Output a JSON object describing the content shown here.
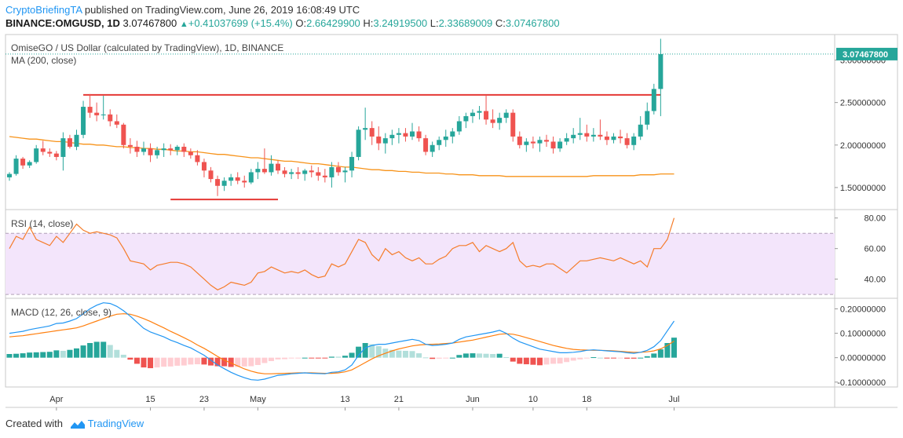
{
  "header": {
    "author": "CryptoBriefingTA",
    "published_text": " published on TradingView.com, June 26, 2019 16:08:49 UTC",
    "symbol": "BINANCE:OMGUSD, 1D",
    "last": "3.07467800",
    "change": "+0.41037699 (+15.4%)",
    "o_label": "O:",
    "o_value": "2.66429900",
    "h_label": "H:",
    "h_value": "3.24919500",
    "l_label": "L:",
    "l_value": "2.33689009",
    "c_label": "C:",
    "c_value": "3.07467800"
  },
  "footer": {
    "prefix": "Created with",
    "brand": "TradingView"
  },
  "colors": {
    "up": "#26a69a",
    "down": "#ef5350",
    "ma": "#f7931a",
    "level": "#e53935",
    "rsi_line": "#f57c2a",
    "rsi_band": "#f3e5fb",
    "macd": "#2196f3",
    "signal": "#ff7f0e",
    "hist_up_strong": "#26a69a",
    "hist_up_weak": "#b2dfdb",
    "hist_down_strong": "#ef5350",
    "hist_down_weak": "#ffcdd2"
  },
  "chart_data": {
    "type": "candlestick",
    "title": "OmiseGO / US Dollar (calculated by TradingView), 1D, BINANCE",
    "ma_label": "MA (200, close)",
    "rsi_label": "RSI (14, close)",
    "macd_label": "MACD (12, 26, close, 9)",
    "last_price_label": "3.07467800",
    "price_axis": {
      "range": [
        1.25,
        3.3
      ],
      "ticks": [
        "1.50000000",
        "2.00000000",
        "2.50000000",
        "3.00000000"
      ],
      "tick_values": [
        1.5,
        2.0,
        2.5,
        3.0
      ]
    },
    "rsi_axis": {
      "range": [
        28,
        85
      ],
      "ticks": [
        "40.00",
        "60.00",
        "80.00"
      ],
      "tick_values": [
        40,
        60,
        80
      ],
      "band": [
        30,
        70
      ]
    },
    "macd_axis": {
      "range": [
        -0.12,
        0.24
      ],
      "ticks": [
        "-0.10000000",
        "0.00000000",
        "0.10000000",
        "0.20000000"
      ],
      "tick_values": [
        -0.1,
        0.0,
        0.1,
        0.2
      ]
    },
    "date_ticks": [
      {
        "label": "Apr",
        "index": 7
      },
      {
        "label": "15",
        "index": 21
      },
      {
        "label": "23",
        "index": 29
      },
      {
        "label": "May",
        "index": 37
      },
      {
        "label": "13",
        "index": 50
      },
      {
        "label": "21",
        "index": 58
      },
      {
        "label": "Jun",
        "index": 69
      },
      {
        "label": "10",
        "index": 78
      },
      {
        "label": "18",
        "index": 86
      },
      {
        "label": "Jul",
        "index": 99
      }
    ],
    "levels": [
      {
        "name": "resistance",
        "value": 2.59,
        "from": 11,
        "to": 97
      },
      {
        "name": "support",
        "value": 1.36,
        "from": 24,
        "to": 40
      }
    ],
    "candles": [
      [
        1.62,
        1.68,
        1.58,
        1.66
      ],
      [
        1.66,
        1.88,
        1.64,
        1.84
      ],
      [
        1.84,
        1.86,
        1.72,
        1.76
      ],
      [
        1.76,
        1.82,
        1.73,
        1.8
      ],
      [
        1.8,
        2.0,
        1.78,
        1.96
      ],
      [
        1.96,
        2.05,
        1.88,
        1.92
      ],
      [
        1.92,
        1.96,
        1.86,
        1.9
      ],
      [
        1.9,
        1.93,
        1.82,
        1.86
      ],
      [
        1.86,
        2.15,
        1.7,
        2.08
      ],
      [
        2.08,
        2.12,
        1.96,
        1.98
      ],
      [
        1.98,
        2.18,
        1.94,
        2.12
      ],
      [
        2.12,
        2.52,
        2.08,
        2.45
      ],
      [
        2.45,
        2.6,
        2.32,
        2.38
      ],
      [
        2.38,
        2.5,
        2.28,
        2.35
      ],
      [
        2.35,
        2.58,
        2.3,
        2.36
      ],
      [
        2.36,
        2.42,
        2.22,
        2.28
      ],
      [
        2.28,
        2.36,
        2.2,
        2.24
      ],
      [
        2.24,
        2.26,
        1.96,
        2.0
      ],
      [
        2.0,
        2.08,
        1.9,
        1.98
      ],
      [
        1.98,
        2.05,
        1.86,
        1.92
      ],
      [
        1.92,
        2.04,
        1.88,
        1.96
      ],
      [
        1.96,
        2.02,
        1.8,
        1.88
      ],
      [
        1.88,
        1.98,
        1.84,
        1.94
      ],
      [
        1.94,
        2.02,
        1.86,
        1.96
      ],
      [
        1.96,
        2.01,
        1.88,
        1.94
      ],
      [
        1.94,
        2.0,
        1.88,
        1.98
      ],
      [
        1.98,
        2.02,
        1.86,
        1.92
      ],
      [
        1.92,
        1.96,
        1.84,
        1.88
      ],
      [
        1.88,
        1.94,
        1.76,
        1.8
      ],
      [
        1.8,
        1.84,
        1.62,
        1.7
      ],
      [
        1.7,
        1.74,
        1.56,
        1.6
      ],
      [
        1.6,
        1.64,
        1.4,
        1.52
      ],
      [
        1.52,
        1.62,
        1.46,
        1.58
      ],
      [
        1.58,
        1.66,
        1.52,
        1.62
      ],
      [
        1.62,
        1.68,
        1.54,
        1.58
      ],
      [
        1.58,
        1.64,
        1.5,
        1.56
      ],
      [
        1.56,
        1.72,
        1.54,
        1.68
      ],
      [
        1.68,
        1.8,
        1.6,
        1.72
      ],
      [
        1.72,
        1.96,
        1.66,
        1.68
      ],
      [
        1.68,
        1.88,
        1.64,
        1.78
      ],
      [
        1.78,
        1.82,
        1.66,
        1.7
      ],
      [
        1.7,
        1.74,
        1.62,
        1.66
      ],
      [
        1.66,
        1.72,
        1.6,
        1.68
      ],
      [
        1.68,
        1.74,
        1.6,
        1.66
      ],
      [
        1.66,
        1.72,
        1.58,
        1.7
      ],
      [
        1.7,
        1.76,
        1.62,
        1.68
      ],
      [
        1.68,
        1.74,
        1.58,
        1.64
      ],
      [
        1.64,
        1.72,
        1.56,
        1.62
      ],
      [
        1.62,
        1.8,
        1.5,
        1.74
      ],
      [
        1.74,
        1.8,
        1.64,
        1.68
      ],
      [
        1.68,
        1.74,
        1.56,
        1.7
      ],
      [
        1.7,
        1.92,
        1.62,
        1.86
      ],
      [
        1.86,
        2.22,
        1.82,
        2.18
      ],
      [
        2.18,
        2.44,
        2.06,
        2.2
      ],
      [
        2.2,
        2.28,
        2.0,
        2.1
      ],
      [
        2.1,
        2.22,
        1.94,
        2.02
      ],
      [
        2.02,
        2.14,
        1.9,
        2.08
      ],
      [
        2.08,
        2.18,
        2.0,
        2.12
      ],
      [
        2.12,
        2.2,
        2.02,
        2.14
      ],
      [
        2.14,
        2.2,
        2.04,
        2.1
      ],
      [
        2.1,
        2.26,
        2.06,
        2.16
      ],
      [
        2.16,
        2.22,
        2.04,
        2.08
      ],
      [
        2.08,
        2.12,
        1.88,
        1.92
      ],
      [
        1.92,
        2.04,
        1.86,
        2.0
      ],
      [
        2.0,
        2.1,
        1.94,
        2.06
      ],
      [
        2.06,
        2.18,
        1.98,
        2.1
      ],
      [
        2.1,
        2.2,
        2.02,
        2.16
      ],
      [
        2.16,
        2.34,
        2.12,
        2.28
      ],
      [
        2.28,
        2.38,
        2.2,
        2.34
      ],
      [
        2.34,
        2.42,
        2.26,
        2.38
      ],
      [
        2.38,
        2.46,
        2.3,
        2.4
      ],
      [
        2.4,
        2.58,
        2.24,
        2.3
      ],
      [
        2.3,
        2.42,
        2.2,
        2.26
      ],
      [
        2.26,
        2.38,
        2.18,
        2.32
      ],
      [
        2.32,
        2.42,
        2.26,
        2.38
      ],
      [
        2.38,
        2.42,
        2.04,
        2.1
      ],
      [
        2.1,
        2.16,
        1.96,
        2.0
      ],
      [
        2.0,
        2.08,
        1.92,
        2.04
      ],
      [
        2.04,
        2.1,
        1.96,
        2.02
      ],
      [
        2.02,
        2.1,
        1.92,
        2.06
      ],
      [
        2.06,
        2.12,
        1.98,
        2.04
      ],
      [
        2.04,
        2.1,
        1.9,
        1.96
      ],
      [
        1.96,
        2.08,
        1.92,
        2.04
      ],
      [
        2.04,
        2.14,
        2.0,
        2.08
      ],
      [
        2.08,
        2.2,
        2.02,
        2.12
      ],
      [
        2.12,
        2.32,
        2.06,
        2.14
      ],
      [
        2.14,
        2.24,
        2.04,
        2.1
      ],
      [
        2.1,
        2.2,
        2.04,
        2.12
      ],
      [
        2.12,
        2.3,
        2.06,
        2.1
      ],
      [
        2.1,
        2.16,
        2.0,
        2.06
      ],
      [
        2.06,
        2.14,
        2.02,
        2.1
      ],
      [
        2.1,
        2.18,
        2.02,
        2.08
      ],
      [
        2.08,
        2.14,
        1.96,
        2.0
      ],
      [
        2.0,
        2.14,
        1.94,
        2.1
      ],
      [
        2.1,
        2.34,
        2.06,
        2.24
      ],
      [
        2.24,
        2.5,
        2.18,
        2.4
      ],
      [
        2.4,
        2.72,
        2.36,
        2.66
      ],
      [
        2.66,
        3.25,
        2.34,
        3.07
      ]
    ],
    "ma200": [
      2.1,
      2.09,
      2.08,
      2.07,
      2.07,
      2.06,
      2.05,
      2.04,
      2.04,
      2.03,
      2.02,
      2.01,
      2.01,
      2.0,
      2.0,
      1.99,
      1.98,
      1.98,
      1.97,
      1.97,
      1.96,
      1.96,
      1.95,
      1.95,
      1.94,
      1.93,
      1.93,
      1.92,
      1.92,
      1.91,
      1.9,
      1.89,
      1.89,
      1.88,
      1.87,
      1.86,
      1.85,
      1.85,
      1.84,
      1.83,
      1.82,
      1.81,
      1.81,
      1.8,
      1.79,
      1.78,
      1.78,
      1.77,
      1.76,
      1.75,
      1.74,
      1.74,
      1.73,
      1.72,
      1.71,
      1.71,
      1.7,
      1.7,
      1.69,
      1.69,
      1.68,
      1.68,
      1.67,
      1.67,
      1.67,
      1.66,
      1.66,
      1.65,
      1.65,
      1.65,
      1.64,
      1.64,
      1.64,
      1.64,
      1.63,
      1.63,
      1.63,
      1.63,
      1.63,
      1.63,
      1.63,
      1.63,
      1.63,
      1.63,
      1.63,
      1.63,
      1.63,
      1.64,
      1.64,
      1.64,
      1.64,
      1.64,
      1.64,
      1.64,
      1.65,
      1.65,
      1.65,
      1.66,
      1.66,
      1.66
    ],
    "rsi": [
      60,
      68,
      66,
      74,
      66,
      64,
      62,
      68,
      64,
      70,
      76,
      72,
      70,
      71,
      70,
      69,
      67,
      60,
      52,
      51,
      50,
      46,
      49,
      50,
      51,
      51,
      50,
      48,
      44,
      40,
      36,
      33,
      35,
      38,
      37,
      36,
      38,
      44,
      45,
      48,
      46,
      44,
      45,
      44,
      46,
      43,
      41,
      42,
      50,
      48,
      50,
      58,
      66,
      64,
      56,
      52,
      60,
      56,
      58,
      54,
      52,
      54,
      50,
      50,
      53,
      55,
      60,
      62,
      62,
      64,
      58,
      62,
      60,
      58,
      60,
      64,
      52,
      48,
      49,
      48,
      50,
      50,
      47,
      44,
      48,
      52,
      52,
      53,
      54,
      53,
      52,
      54,
      52,
      50,
      52,
      48,
      60,
      60,
      66,
      80
    ],
    "macd": [
      0.1,
      0.104,
      0.108,
      0.115,
      0.12,
      0.125,
      0.13,
      0.14,
      0.142,
      0.15,
      0.16,
      0.18,
      0.2,
      0.215,
      0.225,
      0.222,
      0.21,
      0.192,
      0.17,
      0.145,
      0.12,
      0.105,
      0.095,
      0.085,
      0.072,
      0.062,
      0.05,
      0.04,
      0.025,
      0.01,
      -0.01,
      -0.03,
      -0.045,
      -0.06,
      -0.072,
      -0.082,
      -0.09,
      -0.092,
      -0.088,
      -0.08,
      -0.072,
      -0.07,
      -0.066,
      -0.064,
      -0.062,
      -0.064,
      -0.065,
      -0.066,
      -0.06,
      -0.058,
      -0.05,
      -0.03,
      0.01,
      0.04,
      0.05,
      0.055,
      0.055,
      0.06,
      0.065,
      0.07,
      0.075,
      0.07,
      0.055,
      0.05,
      0.052,
      0.055,
      0.06,
      0.075,
      0.085,
      0.09,
      0.095,
      0.1,
      0.105,
      0.112,
      0.1,
      0.08,
      0.065,
      0.055,
      0.045,
      0.035,
      0.03,
      0.025,
      0.02,
      0.02,
      0.022,
      0.025,
      0.03,
      0.032,
      0.03,
      0.028,
      0.026,
      0.024,
      0.02,
      0.018,
      0.022,
      0.03,
      0.045,
      0.07,
      0.11,
      0.15
    ],
    "signal": [
      0.085,
      0.088,
      0.09,
      0.094,
      0.098,
      0.102,
      0.106,
      0.11,
      0.114,
      0.118,
      0.122,
      0.13,
      0.14,
      0.15,
      0.16,
      0.17,
      0.178,
      0.18,
      0.178,
      0.17,
      0.16,
      0.148,
      0.135,
      0.122,
      0.108,
      0.095,
      0.082,
      0.068,
      0.052,
      0.038,
      0.022,
      0.005,
      -0.01,
      -0.022,
      -0.034,
      -0.046,
      -0.055,
      -0.062,
      -0.066,
      -0.066,
      -0.065,
      -0.064,
      -0.063,
      -0.062,
      -0.062,
      -0.062,
      -0.063,
      -0.064,
      -0.064,
      -0.062,
      -0.058,
      -0.05,
      -0.035,
      -0.02,
      -0.005,
      0.008,
      0.018,
      0.028,
      0.036,
      0.042,
      0.048,
      0.052,
      0.054,
      0.055,
      0.056,
      0.058,
      0.06,
      0.064,
      0.068,
      0.072,
      0.078,
      0.084,
      0.09,
      0.096,
      0.098,
      0.096,
      0.09,
      0.082,
      0.074,
      0.066,
      0.058,
      0.05,
      0.044,
      0.038,
      0.034,
      0.032,
      0.031,
      0.03,
      0.03,
      0.029,
      0.028,
      0.026,
      0.024,
      0.022,
      0.022,
      0.024,
      0.028,
      0.036,
      0.05,
      0.068
    ]
  }
}
